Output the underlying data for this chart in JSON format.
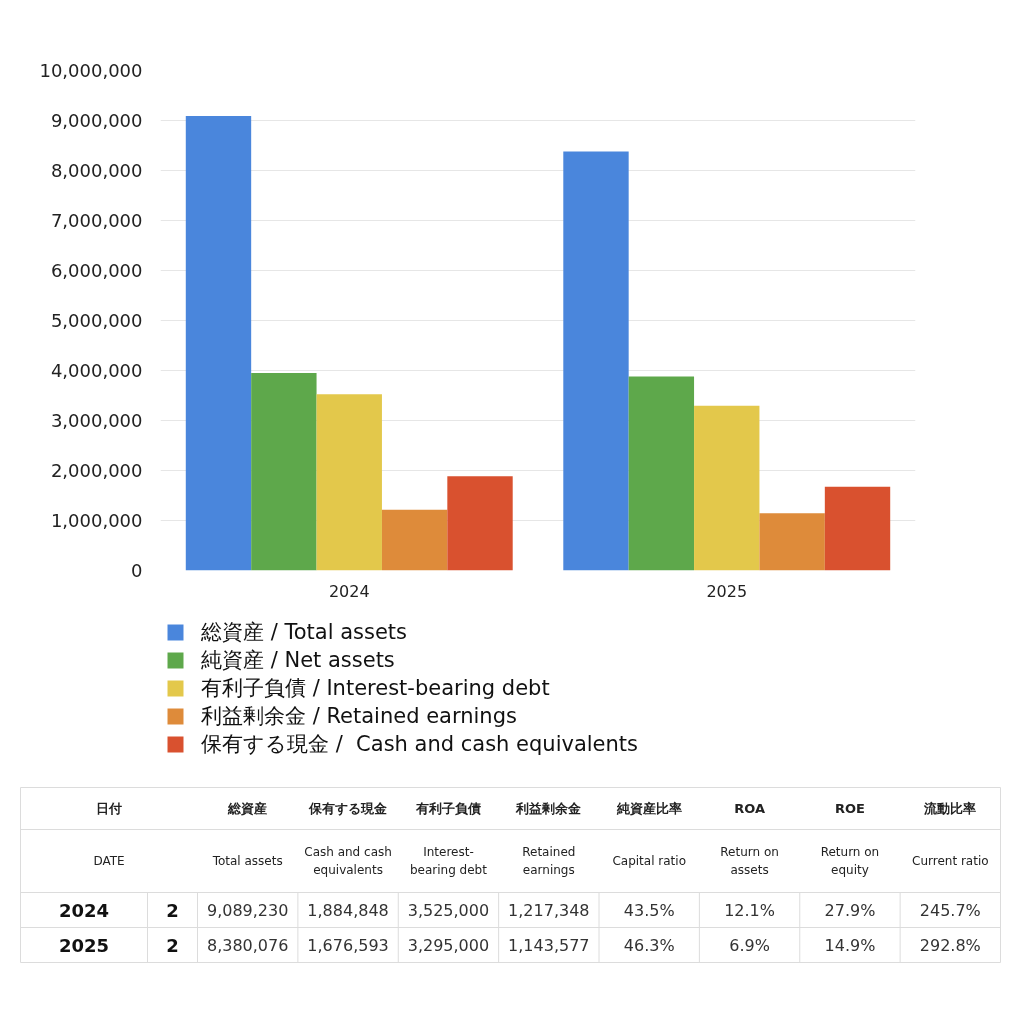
{
  "chart_data": [
    {
      "type": "bar",
      "categories": [
        "2024",
        "2025"
      ],
      "series": [
        {
          "name": "総資産 / Total assets",
          "color": "#4a86dc",
          "values": [
            9089230,
            8380076
          ]
        },
        {
          "name": "純資産 / Net assets",
          "color": "#5ea84b",
          "values": [
            3950000,
            3880000
          ]
        },
        {
          "name": "有利子負債 / Interest-bearing debt",
          "color": "#e3c84b",
          "values": [
            3525000,
            3295000
          ]
        },
        {
          "name": "利益剰余金 / Retained earnings",
          "color": "#de8b3a",
          "values": [
            1217348,
            1143577
          ]
        },
        {
          "name": "保有する現金 /  Cash and cash equivalents",
          "color": "#d9512f",
          "values": [
            1884848,
            1676593
          ]
        }
      ],
      "ylim": [
        0,
        10000000
      ],
      "yticks": [
        0,
        {
          "value": 1000000,
          "label": "1,000,000"
        },
        {
          "value": 2000000,
          "label": "2,000,000"
        },
        {
          "value": 3000000,
          "label": "3,000,000"
        },
        {
          "value": 4000000,
          "label": "4,000,000"
        },
        {
          "value": 5000000,
          "label": "5,000,000"
        },
        {
          "value": 6000000,
          "label": "6,000,000"
        },
        {
          "value": 7000000,
          "label": "7,000,000"
        },
        {
          "value": 8000000,
          "label": "8,000,000"
        },
        {
          "value": 9000000,
          "label": "9,000,000"
        },
        {
          "value": 10000000,
          "label": "10,000,000"
        }
      ],
      "grid": "y",
      "legend": "bottom left"
    },
    {
      "type": "other",
      "cell_labels": [
        [
          "日付",
          null,
          "総資産",
          "保有する現金",
          "有利子負債",
          "利益剰余金",
          "純資産比率",
          "ROA",
          "ROE",
          "流動比率"
        ],
        [
          "DATE",
          null,
          "Total assets",
          "Cash and cash equivalents",
          "Interest-bearing debt",
          "Retained earnings",
          "Capital ratio",
          "Return on assets",
          "Return on equity",
          "Current ratio"
        ],
        [
          "2024",
          "2",
          "9,089,230",
          "1,884,848",
          "3,525,000",
          "1,217,348",
          "43.5%",
          "12.1%",
          "27.9%",
          "245.7%"
        ],
        [
          "2025",
          "2",
          "8,380,076",
          "1,676,593",
          "3,295,000",
          "1,143,577",
          "46.3%",
          "6.9%",
          "14.9%",
          "292.8%"
        ]
      ]
    }
  ]
}
